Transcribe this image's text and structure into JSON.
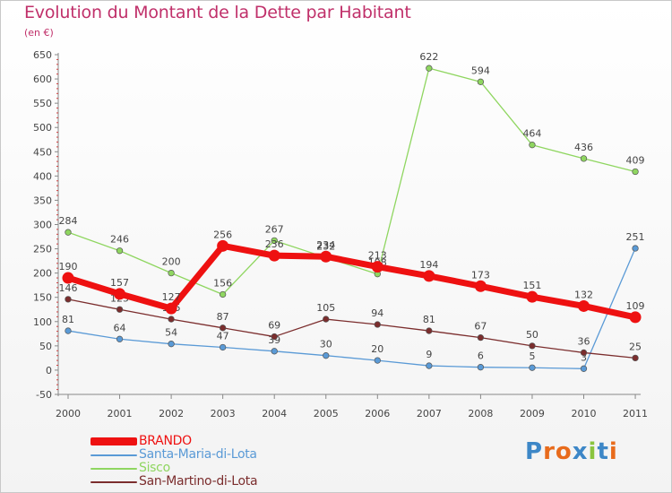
{
  "title": "Evolution du Montant de la Dette par Habitant",
  "subtitle": "(en €)",
  "logo": {
    "letters": [
      "P",
      "r",
      "o",
      "x",
      "i",
      "t",
      "i"
    ],
    "colors": [
      "#3d87c7",
      "#e86b1c",
      "#e86b1c",
      "#3d87c7",
      "#8ac43f",
      "#3d87c7",
      "#e86b1c"
    ]
  },
  "chart_data": {
    "type": "line",
    "title": "Evolution du Montant de la Dette par Habitant",
    "subtitle": "(en €)",
    "x": [
      "2000",
      "2001",
      "2002",
      "2003",
      "2004",
      "2005",
      "2006",
      "2007",
      "2008",
      "2009",
      "2010",
      "2011"
    ],
    "ylim": [
      -50,
      650
    ],
    "yticks": [
      -50,
      0,
      50,
      100,
      150,
      200,
      250,
      300,
      350,
      400,
      450,
      500,
      550,
      600,
      650
    ],
    "grid": false,
    "legend_position": "bottom-left",
    "series": [
      {
        "name": "Santa-Maria-di-Lota",
        "color": "#5a9ad6",
        "values": [
          81,
          64,
          54,
          47,
          39,
          30,
          20,
          9,
          6,
          5,
          3,
          251
        ],
        "labels": [
          "81",
          "64",
          "54",
          "47",
          "39",
          "30",
          "20",
          "9",
          "6",
          "5",
          "3",
          "251"
        ]
      },
      {
        "name": "Sisco",
        "color": "#8fd660",
        "values": [
          284,
          246,
          200,
          156,
          267,
          232,
          198,
          622,
          594,
          464,
          436,
          409
        ],
        "labels": [
          "284",
          "246",
          "200",
          "156",
          "267",
          "232",
          "198",
          "622",
          "594",
          "464",
          "436",
          "409"
        ]
      },
      {
        "name": "San-Martino-di-Lota",
        "color": "#7b2d2d",
        "values": [
          146,
          125,
          105,
          87,
          69,
          105,
          94,
          81,
          67,
          50,
          36,
          25
        ],
        "labels": [
          "146",
          "125",
          "105",
          "87",
          "69",
          "105",
          "94",
          "81",
          "67",
          "50",
          "36",
          "25"
        ]
      },
      {
        "name": "BRANDO",
        "color": "#ee1111",
        "values": [
          190,
          157,
          127,
          256,
          236,
          234,
          213,
          194,
          173,
          151,
          132,
          109
        ],
        "labels": [
          "190",
          "157",
          "127",
          "256",
          "236",
          "234",
          "213",
          "194",
          "173",
          "151",
          "132",
          "109"
        ]
      }
    ],
    "legend": [
      {
        "name": "BRANDO",
        "color": "#ee1111",
        "thick": true
      },
      {
        "name": "Santa-Maria-di-Lota",
        "color": "#5a9ad6",
        "thick": false
      },
      {
        "name": "Sisco",
        "color": "#8fd660",
        "thick": false
      },
      {
        "name": "San-Martino-di-Lota",
        "color": "#7b2d2d",
        "thick": false
      }
    ]
  }
}
